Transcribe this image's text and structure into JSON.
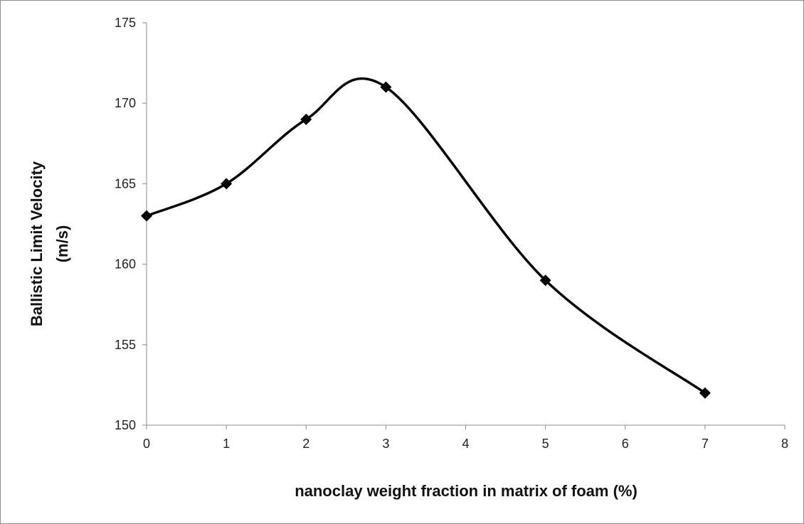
{
  "chart_data": {
    "type": "line",
    "smooth": true,
    "title": "",
    "xlabel": "nanoclay weight fraction in matrix of foam (%)",
    "ylabel_lines": [
      "Ballistic Limit Velocity",
      "(m/s)"
    ],
    "xlim": [
      0,
      8
    ],
    "ylim": [
      150,
      175
    ],
    "xticks": [
      0,
      1,
      2,
      3,
      4,
      5,
      6,
      7,
      8
    ],
    "yticks": [
      150,
      155,
      160,
      165,
      170,
      175
    ],
    "grid": false,
    "legend": "none",
    "series": [
      {
        "x": [
          0,
          1,
          2,
          3,
          5,
          7
        ],
        "y": [
          163,
          165,
          169,
          171,
          159,
          152
        ],
        "color": "#000000",
        "marker": "diamond"
      }
    ]
  }
}
